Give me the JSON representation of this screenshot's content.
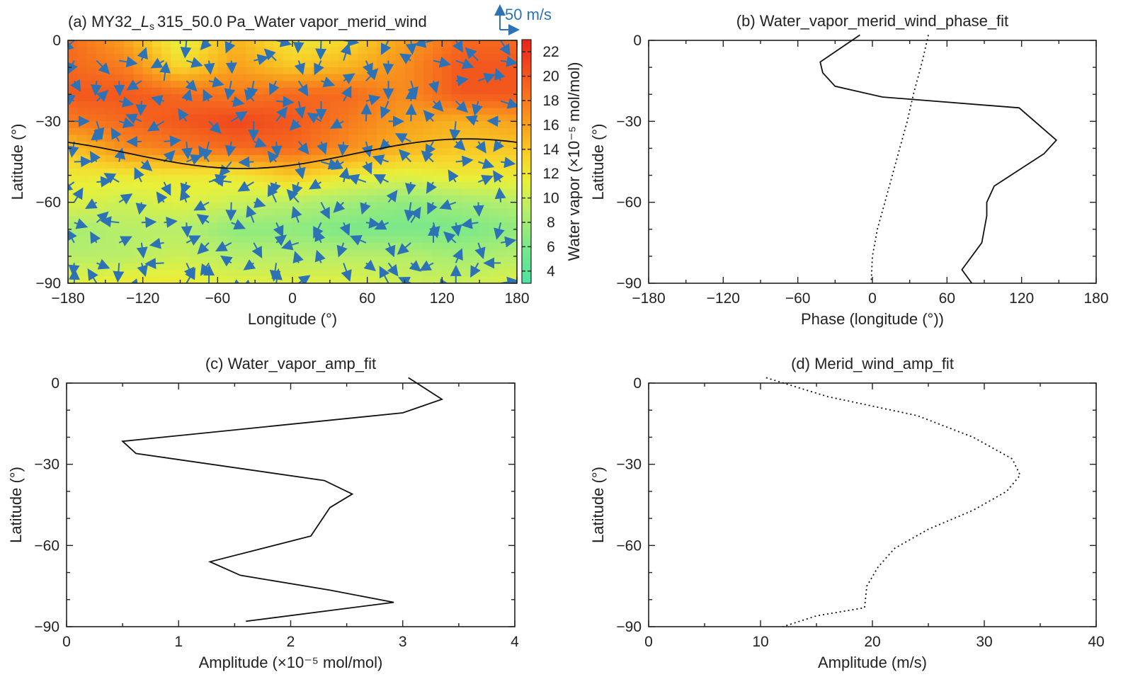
{
  "chart_data": [
    {
      "panel": "a",
      "type": "heatmap",
      "title_parts": {
        "prefix": "(a) MY32_",
        "ls_main": "L",
        "ls_sub": "s",
        "suffix": "315_50.0 Pa_Water vapor_merid_wind"
      },
      "xlabel": "Longitude (°)",
      "ylabel": "Latitude (°)",
      "xlim": [
        -180,
        180
      ],
      "ylim": [
        -90,
        0
      ],
      "xticks": [
        -180,
        -120,
        -60,
        0,
        60,
        120,
        180
      ],
      "yticks": [
        0,
        -30,
        -60,
        -90
      ],
      "tick_labels_x": [
        "−180",
        "−120",
        "−60",
        "0",
        "60",
        "120",
        "180"
      ],
      "tick_labels_y": [
        "0",
        "−30",
        "−60",
        "−90"
      ],
      "colorbar": {
        "label": "Water vapor (×10⁻⁵ mol/mol)",
        "range": [
          3,
          23
        ],
        "ticks": [
          4,
          6,
          8,
          10,
          12,
          14,
          16,
          18,
          20,
          22
        ],
        "tick_labels": [
          "4",
          "6",
          "8",
          "10",
          "12",
          "14",
          "16",
          "18",
          "20",
          "22"
        ]
      },
      "reference_vector": {
        "label": "50 m/s",
        "value": 50
      },
      "color_grid": {
        "lats": [
          0,
          -10,
          -20,
          -30,
          -40,
          -50,
          -60,
          -70,
          -80,
          -90
        ],
        "lons": [
          -180,
          -135,
          -90,
          -45,
          0,
          45,
          90,
          135,
          180
        ],
        "values": [
          [
            19,
            16,
            11,
            15,
            12,
            13,
            16,
            19,
            19
          ],
          [
            19,
            18,
            13,
            16,
            14,
            15,
            17,
            20,
            20
          ],
          [
            20,
            20,
            19,
            18,
            19,
            19,
            17,
            20,
            20
          ],
          [
            18,
            19,
            20,
            21,
            20,
            18,
            16,
            15,
            16
          ],
          [
            14,
            17,
            18,
            19,
            19,
            17,
            15,
            14,
            14
          ],
          [
            12,
            12,
            12,
            12,
            14,
            12,
            11,
            12,
            12
          ],
          [
            11,
            10,
            11,
            10,
            9,
            8,
            7,
            8,
            9
          ],
          [
            8,
            9,
            9,
            7,
            7,
            6,
            6,
            6,
            7
          ],
          [
            9,
            9,
            10,
            9,
            9,
            9,
            9,
            8,
            9
          ],
          [
            11,
            12,
            12,
            11,
            11,
            11,
            10,
            10,
            11
          ]
        ]
      },
      "wave_line": {
        "mean_lat": -42,
        "amplitude": 5.5,
        "phase_lon": 140
      }
    },
    {
      "panel": "b",
      "type": "line",
      "title": "(b) Water_vapor_merid_wind_phase_fit",
      "xlabel": "Phase (longitude (°))",
      "ylabel": "Latitude (°)",
      "xlim": [
        -180,
        180
      ],
      "ylim": [
        -90,
        0
      ],
      "xticks": [
        -180,
        -120,
        -60,
        0,
        60,
        120,
        180
      ],
      "yticks": [
        0,
        -30,
        -60,
        -90
      ],
      "tick_labels_x": [
        "−180",
        "−120",
        "−60",
        "0",
        "60",
        "120",
        "180"
      ],
      "tick_labels_y": [
        "0",
        "−30",
        "−60",
        "−90"
      ],
      "series": [
        {
          "name": "water_vapor_phase",
          "style": "solid",
          "x": [
            -10,
            -42,
            -40,
            -30,
            8,
            118,
            148,
            138,
            98,
            92,
            92,
            88,
            72,
            80
          ],
          "y": [
            2,
            -8,
            -12,
            -17,
            -21,
            -25,
            -37,
            -42,
            -54,
            -60,
            -65,
            -75,
            -85,
            -90
          ]
        },
        {
          "name": "merid_wind_phase",
          "style": "dotted",
          "x": [
            45,
            40,
            33,
            28,
            22,
            16,
            10,
            4,
            0,
            -1
          ],
          "y": [
            2,
            -8,
            -20,
            -30,
            -40,
            -50,
            -60,
            -70,
            -80,
            -90
          ]
        }
      ]
    },
    {
      "panel": "c",
      "type": "line",
      "title": "(c) Water_vapor_amp_fit",
      "xlabel": "Amplitude (×10⁻⁵ mol/mol)",
      "ylabel": "Latitude (°)",
      "xlim": [
        0,
        4
      ],
      "ylim": [
        -90,
        0
      ],
      "xticks": [
        0,
        1,
        2,
        3,
        4
      ],
      "yticks": [
        0,
        -30,
        -60,
        -90
      ],
      "tick_labels_x": [
        "0",
        "1",
        "2",
        "3",
        "4"
      ],
      "tick_labels_y": [
        "0",
        "−30",
        "−60",
        "−90"
      ],
      "series": [
        {
          "name": "water_vapor_amp",
          "style": "solid",
          "x": [
            3.05,
            3.35,
            3.0,
            0.5,
            0.62,
            2.3,
            2.55,
            2.35,
            2.18,
            1.28,
            1.55,
            2.35,
            2.92,
            1.6
          ],
          "y": [
            2,
            -6,
            -11,
            -21.5,
            -26,
            -36,
            -41,
            -46,
            -56.5,
            -66,
            -71,
            -76.5,
            -81,
            -88
          ]
        }
      ]
    },
    {
      "panel": "d",
      "type": "line",
      "title": "(d) Merid_wind_amp_fit",
      "xlabel": "Amplitude (m/s)",
      "ylabel": "Latitude (°)",
      "xlim": [
        0,
        40
      ],
      "ylim": [
        -90,
        0
      ],
      "xticks": [
        0,
        10,
        20,
        30,
        40
      ],
      "yticks": [
        0,
        -30,
        -60,
        -90
      ],
      "tick_labels_x": [
        "0",
        "10",
        "20",
        "30",
        "40"
      ],
      "tick_labels_y": [
        "0",
        "−30",
        "−60",
        "−90"
      ],
      "series": [
        {
          "name": "merid_wind_amp",
          "style": "dotted",
          "x": [
            10.5,
            16,
            24,
            29,
            32.5,
            33.2,
            32,
            29,
            25,
            22,
            20.5,
            19.5,
            19.3,
            15,
            12
          ],
          "y": [
            2,
            -5,
            -12,
            -20,
            -28,
            -34,
            -40,
            -47,
            -54,
            -61,
            -68,
            -75,
            -83,
            -86,
            -90
          ]
        }
      ]
    }
  ]
}
